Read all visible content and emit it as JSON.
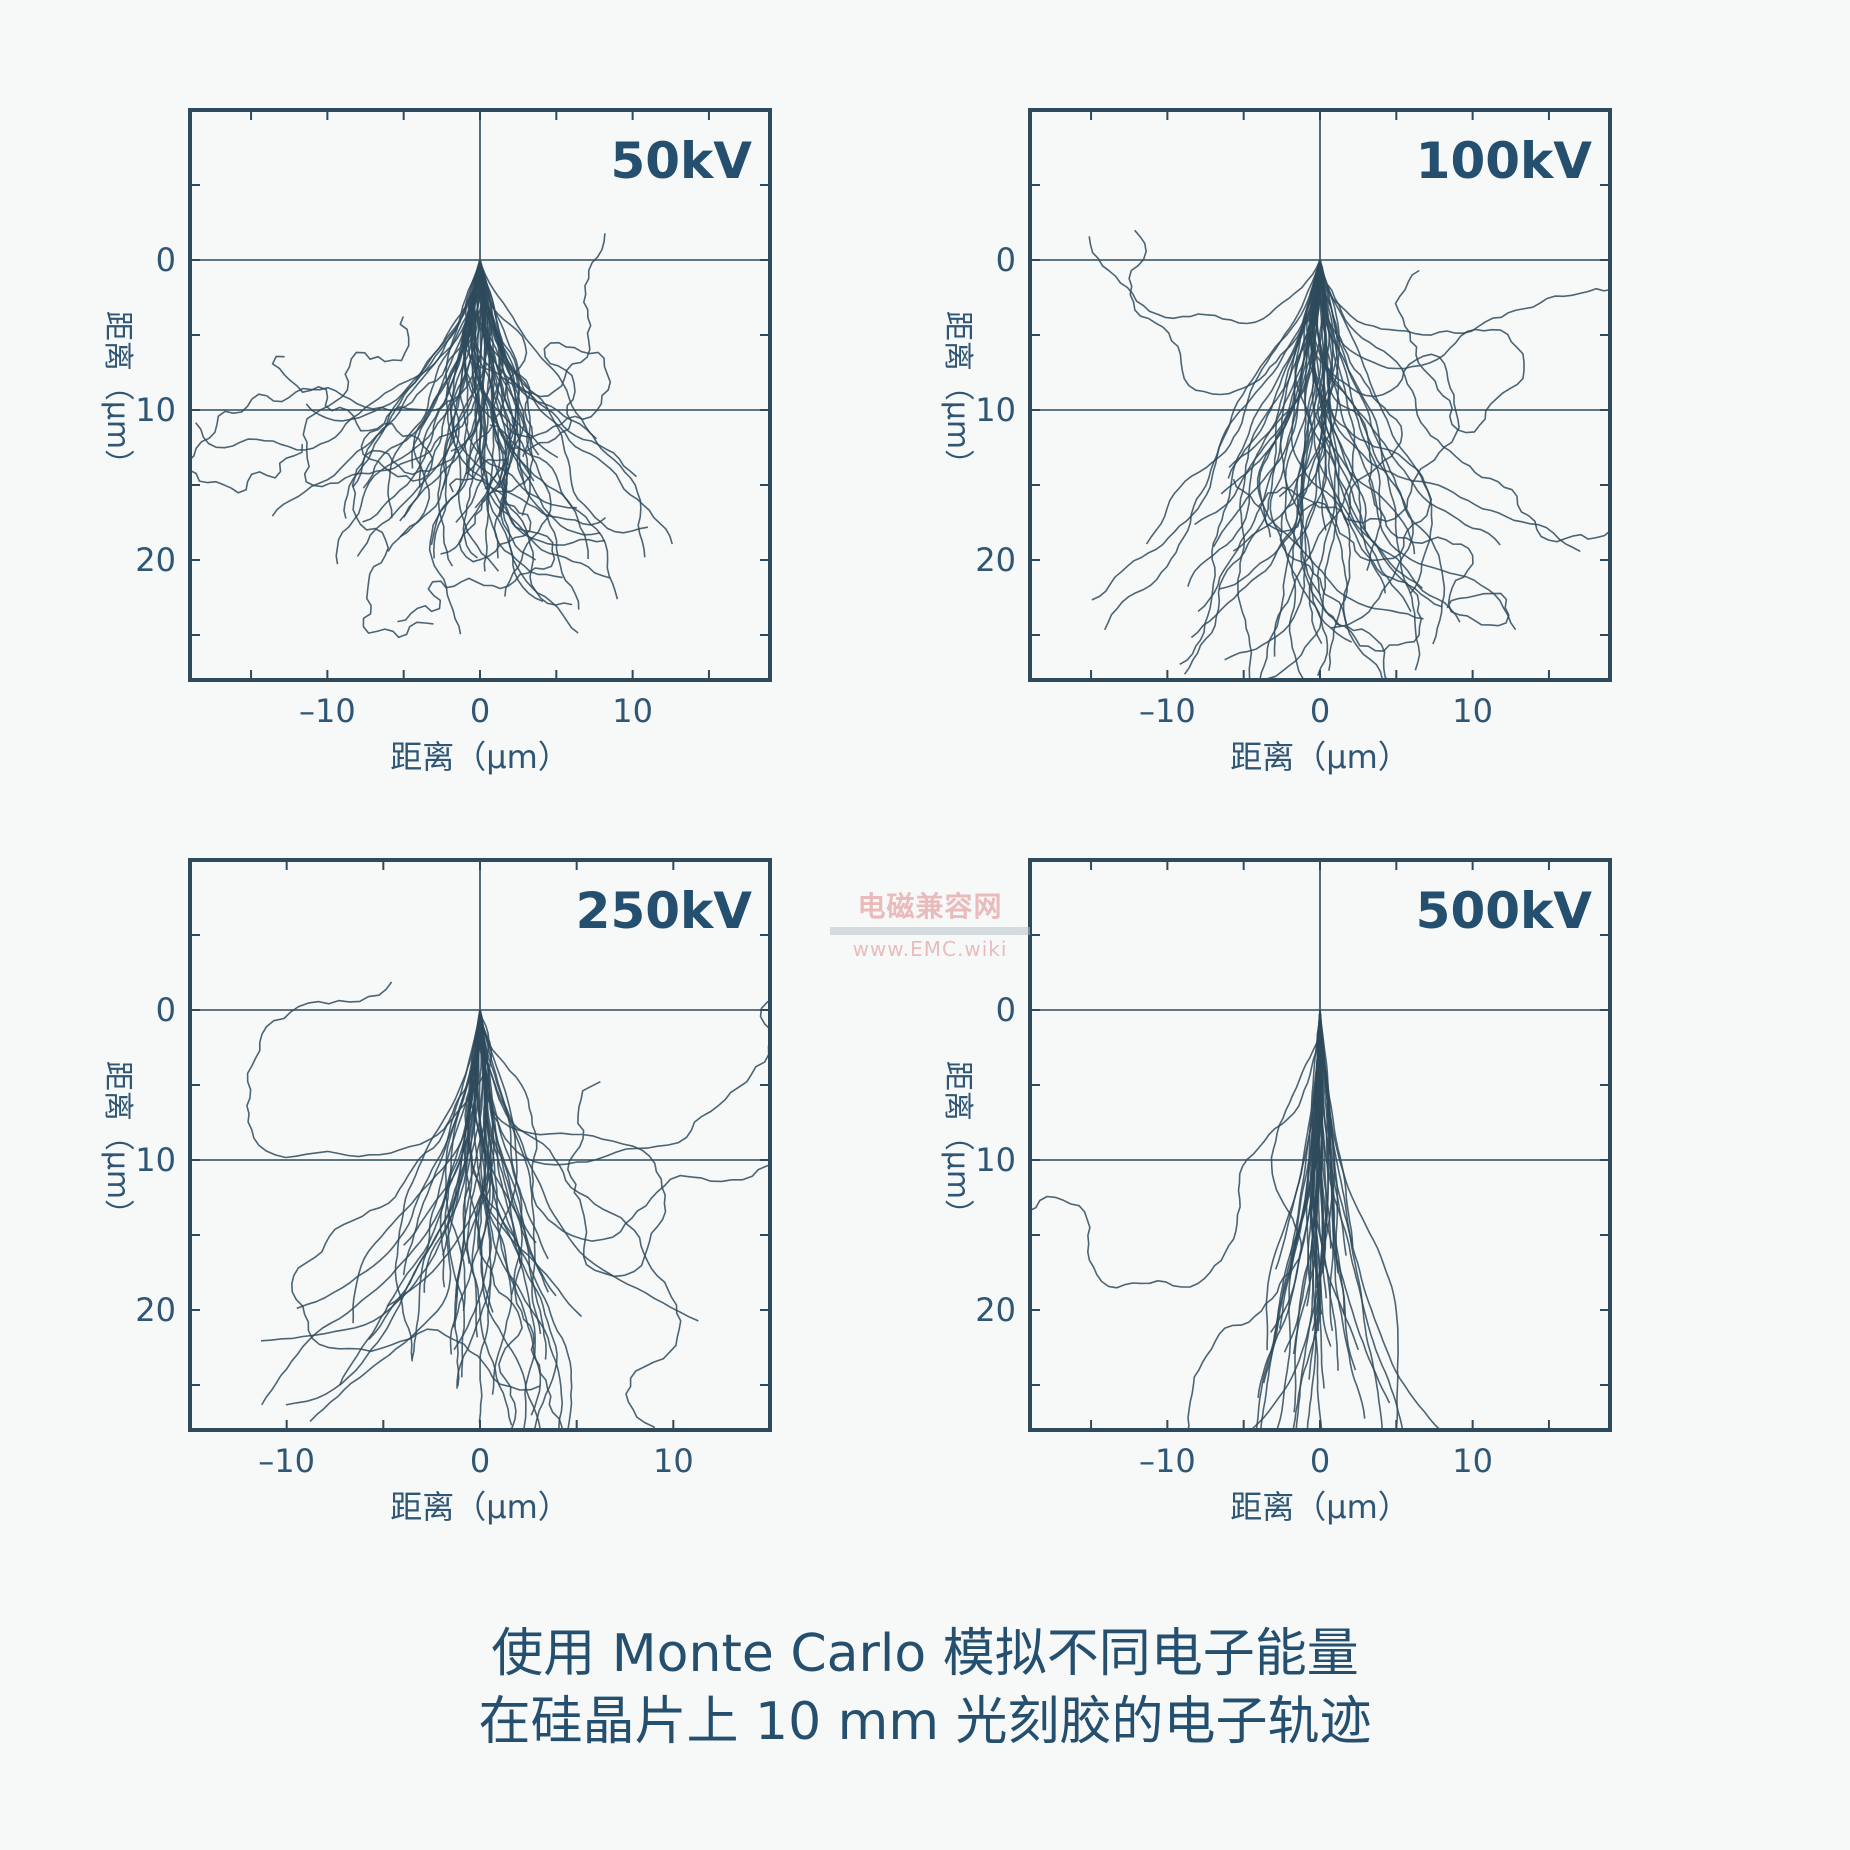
{
  "chart_data": [
    {
      "type": "scatter",
      "title": "50kV",
      "xlabel": "距离（μm）",
      "ylabel": "距离（μm）",
      "xlim": [
        -19,
        19
      ],
      "ylim": [
        -10,
        28
      ],
      "x_ticks": [
        -10,
        0,
        10
      ],
      "x_tick_labels": [
        "–10",
        "0",
        "10"
      ],
      "y_ticks": [
        0,
        10,
        20
      ],
      "y_tick_labels": [
        "0",
        "10",
        "20"
      ],
      "reference_lines_y": [
        0,
        10
      ],
      "beam_x": 0,
      "spread_depth": 23,
      "spread_width": 13,
      "n_trajectories": 70,
      "seed": 11
    },
    {
      "type": "scatter",
      "title": "100kV",
      "xlabel": "距离（μm）",
      "ylabel": "距离（μm）",
      "xlim": [
        -19,
        19
      ],
      "ylim": [
        -10,
        28
      ],
      "x_ticks": [
        -10,
        0,
        10
      ],
      "x_tick_labels": [
        "–10",
        "0",
        "10"
      ],
      "y_ticks": [
        0,
        10,
        20
      ],
      "y_tick_labels": [
        "0",
        "10",
        "20"
      ],
      "reference_lines_y": [
        0,
        10
      ],
      "beam_x": 0,
      "spread_depth": 28,
      "spread_width": 11,
      "n_trajectories": 60,
      "seed": 23
    },
    {
      "type": "scatter",
      "title": "250kV",
      "xlabel": "距离（μm）",
      "ylabel": "距离（μm）",
      "xlim": [
        -15,
        15
      ],
      "ylim": [
        -10,
        28
      ],
      "x_ticks": [
        -10,
        0,
        10
      ],
      "x_tick_labels": [
        "–10",
        "0",
        "10"
      ],
      "y_ticks": [
        0,
        10,
        20
      ],
      "y_tick_labels": [
        "0",
        "10",
        "20"
      ],
      "reference_lines_y": [
        0,
        10
      ],
      "beam_x": 0,
      "spread_depth": 28,
      "spread_width": 6,
      "n_trajectories": 55,
      "seed": 37
    },
    {
      "type": "scatter",
      "title": "500kV",
      "xlabel": "距离（μm）",
      "ylabel": "距离（μm）",
      "xlim": [
        -19,
        19
      ],
      "ylim": [
        -10,
        28
      ],
      "x_ticks": [
        -10,
        0,
        10
      ],
      "x_tick_labels": [
        "–10",
        "0",
        "10"
      ],
      "y_ticks": [
        0,
        10,
        20
      ],
      "y_tick_labels": [
        "0",
        "10",
        "20"
      ],
      "reference_lines_y": [
        0,
        10
      ],
      "beam_x": 0,
      "spread_depth": 28,
      "spread_width": 3.5,
      "n_trajectories": 50,
      "seed": 53
    }
  ],
  "colors": {
    "trajectory": "#2e4a5c",
    "axis": "#2e4a5c",
    "label": "#2f5674",
    "title": "#244f6e"
  },
  "watermark": {
    "text_cn": "电磁兼容网",
    "text_url": "www.EMC.wiki"
  },
  "caption": {
    "line1": "使用 Monte Carlo 模拟不同电子能量",
    "line2": "在硅晶片上 10 mm 光刻胶的电子轨迹"
  }
}
